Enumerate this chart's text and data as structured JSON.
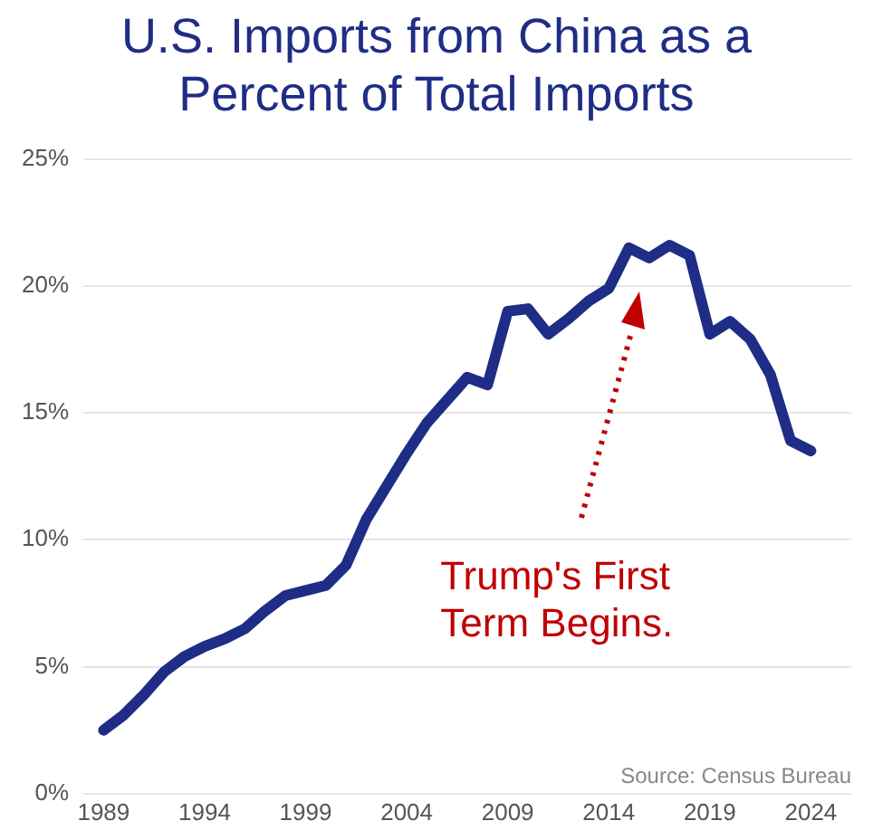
{
  "chart_data": {
    "type": "line",
    "title": "U.S. Imports from China as a Percent of Total Imports",
    "x": [
      1989,
      1990,
      1991,
      1992,
      1993,
      1994,
      1995,
      1996,
      1997,
      1998,
      1999,
      2000,
      2001,
      2002,
      2003,
      2004,
      2005,
      2006,
      2007,
      2008,
      2009,
      2010,
      2011,
      2012,
      2013,
      2014,
      2015,
      2016,
      2017,
      2018,
      2019,
      2020,
      2021,
      2022,
      2023,
      2024
    ],
    "series": [
      {
        "color": "#1f2d86",
        "values": [
          2.5,
          3.1,
          3.9,
          4.8,
          5.4,
          5.8,
          6.1,
          6.5,
          7.2,
          7.8,
          8.0,
          8.2,
          9.0,
          10.8,
          12.1,
          13.4,
          14.6,
          15.5,
          16.4,
          16.1,
          19.0,
          19.1,
          18.1,
          18.7,
          19.4,
          19.9,
          21.5,
          21.1,
          21.6,
          21.2,
          18.1,
          18.6,
          17.9,
          16.5,
          13.9,
          13.5
        ]
      }
    ],
    "xlim": [
      1988,
      2026
    ],
    "xticks": [
      1989,
      1994,
      1999,
      2004,
      2009,
      2014,
      2019,
      2024
    ],
    "ylim": [
      0,
      25
    ],
    "yticks": [
      {
        "value": 0,
        "label": "0%"
      },
      {
        "value": 5,
        "label": "5%"
      },
      {
        "value": 10,
        "label": "10%"
      },
      {
        "value": 15,
        "label": "15%"
      },
      {
        "value": 20,
        "label": "20%"
      },
      {
        "value": 25,
        "label": "25%"
      }
    ],
    "grid": "y",
    "legend": false,
    "marker": "none",
    "line_style": "solid",
    "annotations": [
      "Trump's First Term Begins.",
      "Source: Census Bureau"
    ]
  }
}
